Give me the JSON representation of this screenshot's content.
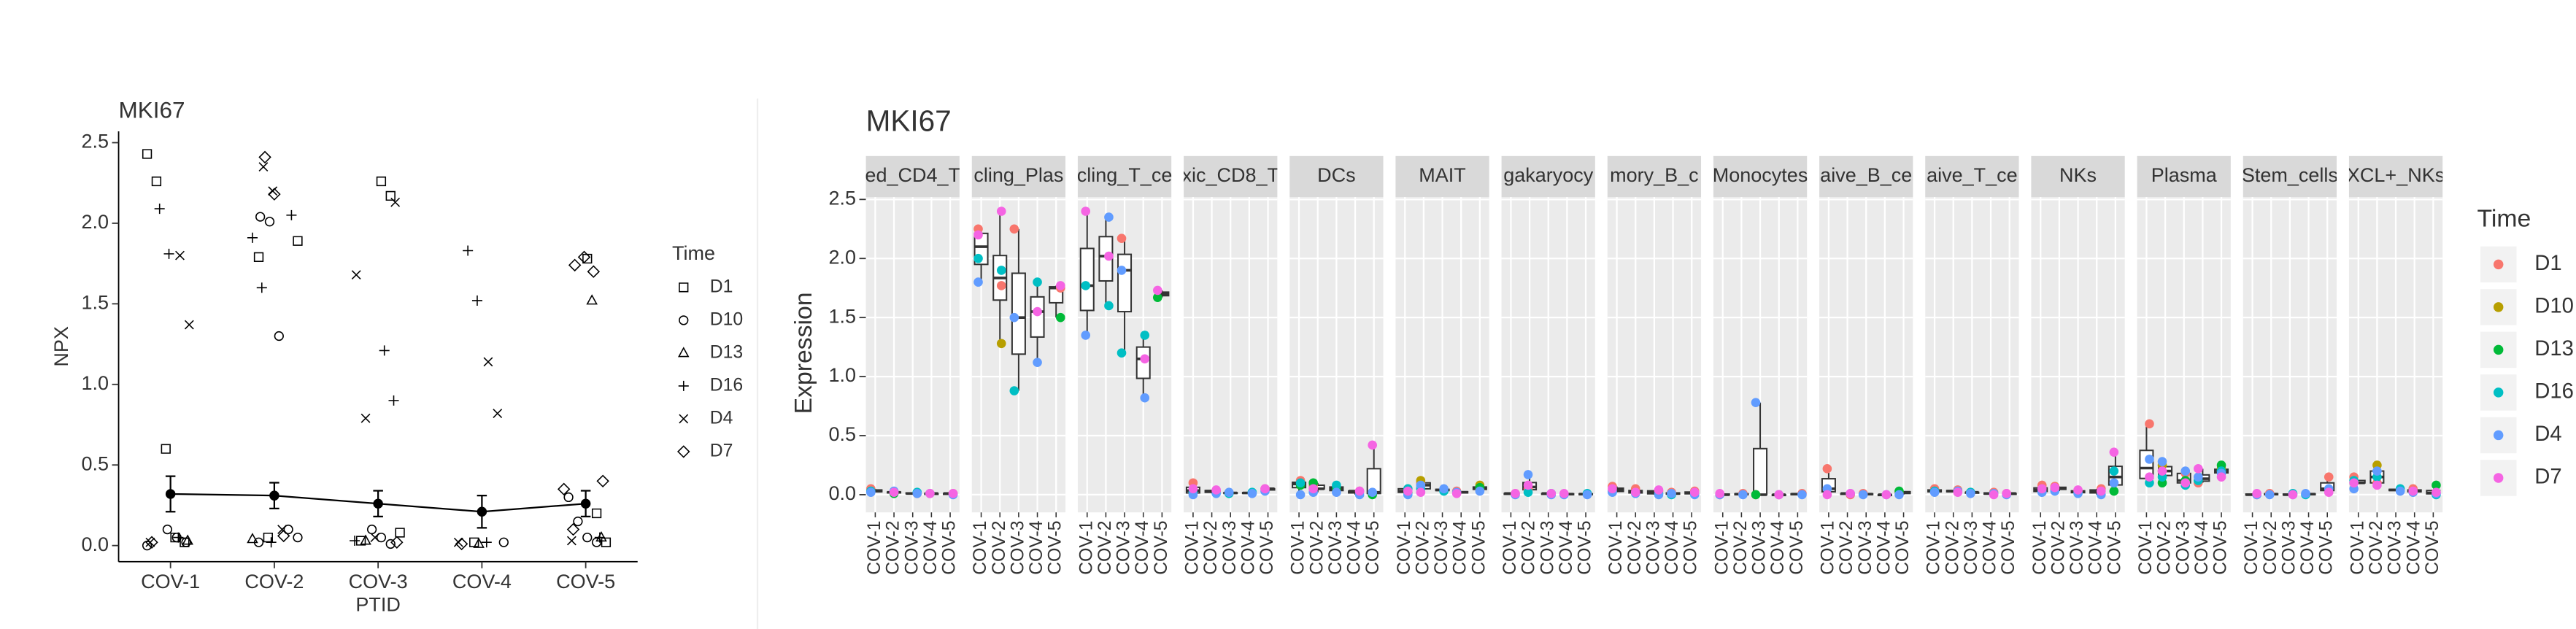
{
  "chart_data": [
    {
      "type": "scatter",
      "title": "MKI67",
      "xlabel": "PTID",
      "ylabel": "NPX",
      "legend_title": "Time",
      "categories": [
        "COV-1",
        "COV-2",
        "COV-3",
        "COV-4",
        "COV-5"
      ],
      "ylim": [
        -0.1,
        2.57
      ],
      "yticks": [
        {
          "value": 0,
          "label": "0.0"
        },
        0.5,
        {
          "value": 1,
          "label": "1.0"
        },
        1.5,
        {
          "value": 2,
          "label": "2.0"
        },
        2.5
      ],
      "series": [
        {
          "name": "D1",
          "shape": "square",
          "x": [
            "COV-1",
            "COV-1",
            "COV-1",
            "COV-1",
            "COV-1",
            "COV-2",
            "COV-2",
            "COV-2",
            "COV-3",
            "COV-3",
            "COV-3",
            "COV-3",
            "COV-4",
            "COV-5",
            "COV-5",
            "COV-5"
          ],
          "values": [
            2.43,
            2.26,
            0.6,
            0.05,
            0.02,
            1.89,
            1.79,
            0.05,
            2.26,
            2.17,
            0.08,
            0.03,
            0.02,
            1.78,
            0.2,
            0.02
          ]
        },
        {
          "name": "D10",
          "shape": "circle",
          "x": [
            "COV-1",
            "COV-1",
            "COV-1",
            "COV-1",
            "COV-2",
            "COV-2",
            "COV-2",
            "COV-2",
            "COV-2",
            "COV-2",
            "COV-3",
            "COV-3",
            "COV-3",
            "COV-4",
            "COV-5",
            "COV-5",
            "COV-5",
            "COV-5"
          ],
          "values": [
            0.1,
            0.05,
            0.02,
            0,
            2.04,
            2.01,
            1.3,
            0.1,
            0.05,
            0.02,
            0.1,
            0.05,
            0.01,
            0.02,
            0.3,
            0.15,
            0.05,
            0.02
          ]
        },
        {
          "name": "D13",
          "shape": "triangle",
          "x": [
            "COV-1",
            "COV-2",
            "COV-3",
            "COV-4",
            "COV-5",
            "COV-5"
          ],
          "values": [
            0.03,
            0.04,
            0.03,
            0.01,
            1.52,
            0.05
          ]
        },
        {
          "name": "D16",
          "shape": "plus",
          "x": [
            "COV-1",
            "COV-1",
            "COV-1",
            "COV-2",
            "COV-2",
            "COV-2",
            "COV-2",
            "COV-3",
            "COV-3",
            "COV-3",
            "COV-4",
            "COV-4",
            "COV-4",
            "COV-5"
          ],
          "values": [
            2.09,
            1.81,
            0.05,
            2.05,
            1.91,
            1.6,
            0.02,
            1.21,
            0.9,
            0.03,
            1.83,
            1.52,
            0.02,
            0.05
          ]
        },
        {
          "name": "D4",
          "shape": "cross",
          "x": [
            "COV-1",
            "COV-1",
            "COV-1",
            "COV-2",
            "COV-2",
            "COV-2",
            "COV-3",
            "COV-3",
            "COV-3",
            "COV-3",
            "COV-4",
            "COV-4",
            "COV-4",
            "COV-5"
          ],
          "values": [
            1.8,
            1.37,
            0.02,
            2.35,
            2.2,
            0.1,
            2.13,
            1.68,
            0.79,
            0.05,
            1.14,
            0.82,
            0.02,
            0.03
          ]
        },
        {
          "name": "D7",
          "shape": "diamond",
          "x": [
            "COV-1",
            "COV-2",
            "COV-2",
            "COV-2",
            "COV-3",
            "COV-4",
            "COV-5",
            "COV-5",
            "COV-5",
            "COV-5",
            "COV-5",
            "COV-5"
          ],
          "values": [
            0.02,
            2.41,
            2.18,
            0.06,
            0.02,
            0.01,
            1.74,
            1.79,
            1.7,
            0.4,
            0.35,
            0.1
          ]
        }
      ],
      "mean": {
        "values": [
          0.32,
          0.31,
          0.26,
          0.21,
          0.26
        ],
        "errors": [
          0.11,
          0.08,
          0.08,
          0.1,
          0.08
        ]
      }
    },
    {
      "type": "box",
      "title": "MKI67",
      "ylabel": "Expression",
      "legend_title": "Time",
      "categories": [
        "COV-1",
        "COV-2",
        "COV-3",
        "COV-4",
        "COV-5"
      ],
      "ylim": [
        -0.15,
        2.52
      ],
      "yticks": [
        {
          "value": 0,
          "label": "0.0"
        },
        0.5,
        {
          "value": 1,
          "label": "1.0"
        },
        1.5,
        {
          "value": 2,
          "label": "2.0"
        },
        2.5
      ],
      "series": [
        {
          "name": "D1",
          "color": "#F8766D"
        },
        {
          "name": "D10",
          "color": "#B79F00"
        },
        {
          "name": "D13",
          "color": "#00BA38"
        },
        {
          "name": "D16",
          "color": "#00BFC4"
        },
        {
          "name": "D4",
          "color": "#619CFF"
        },
        {
          "name": "D7",
          "color": "#F564E3"
        }
      ],
      "facets": [
        {
          "label": "ed_CD4_T",
          "values": [
            [
              0.05,
              0.02,
              0.01,
              0.01,
              0.01
            ],
            [
              null,
              null,
              null,
              null,
              null
            ],
            [
              null,
              0.01,
              null,
              null,
              null
            ],
            [
              0.03,
              null,
              0.02,
              null,
              null
            ],
            [
              0.02,
              0.03,
              0.01,
              0.01,
              0
            ],
            [
              null,
              0.02,
              null,
              0.01,
              0.01
            ]
          ]
        },
        {
          "label": "cling_Plas",
          "values": [
            [
              2.25,
              1.77,
              2.25,
              null,
              1.75
            ],
            [
              null,
              1.28,
              null,
              null,
              null
            ],
            [
              null,
              null,
              null,
              null,
              1.5
            ],
            [
              2.0,
              1.9,
              0.88,
              1.8,
              null
            ],
            [
              1.8,
              null,
              1.5,
              1.12,
              null
            ],
            [
              2.2,
              2.4,
              null,
              1.55,
              1.77
            ]
          ]
        },
        {
          "label": "cling_T_ce",
          "values": [
            [
              null,
              null,
              2.17,
              null,
              null
            ],
            [
              null,
              null,
              null,
              null,
              null
            ],
            [
              null,
              null,
              null,
              null,
              1.67
            ],
            [
              1.77,
              1.6,
              1.2,
              1.35,
              null
            ],
            [
              1.35,
              2.35,
              1.9,
              0.82,
              null
            ],
            [
              2.4,
              2.02,
              null,
              1.15,
              1.73
            ]
          ]
        },
        {
          "label": "xic_CD8_T",
          "values": [
            [
              0.1,
              0.03,
              null,
              null,
              0.05
            ],
            [
              null,
              null,
              null,
              null,
              null
            ],
            [
              null,
              null,
              null,
              null,
              null
            ],
            [
              0.02,
              null,
              0.01,
              0.02,
              null
            ],
            [
              0,
              0.01,
              0.02,
              0.01,
              0.03
            ],
            [
              0.05,
              0.04,
              null,
              null,
              0.05
            ]
          ]
        },
        {
          "label": "DCs",
          "values": [
            [
              0.12,
              0.08,
              null,
              0.03,
              null
            ],
            [
              null,
              0.05,
              null,
              null,
              null
            ],
            [
              0.08,
              0.1,
              0.05,
              null,
              0
            ],
            [
              0.1,
              null,
              0.08,
              null,
              null
            ],
            [
              0,
              0.02,
              0.02,
              0,
              0.02
            ],
            [
              null,
              0.05,
              null,
              0.03,
              0.42
            ]
          ]
        },
        {
          "label": "MAIT",
          "values": [
            [
              0.05,
              0.1,
              null,
              0.03,
              0.05
            ],
            [
              null,
              0.12,
              null,
              null,
              0.08
            ],
            [
              0.02,
              null,
              null,
              null,
              0.06
            ],
            [
              0.05,
              0.05,
              0.03,
              null,
              null
            ],
            [
              0,
              0.08,
              0.05,
              0.02,
              0.03
            ],
            [
              0.03,
              0.02,
              null,
              0.01,
              null
            ]
          ]
        },
        {
          "label": "gakaryocy",
          "values": [
            [
              0.01,
              0.05,
              null,
              null,
              null
            ],
            [
              null,
              null,
              null,
              null,
              null
            ],
            [
              null,
              null,
              null,
              null,
              null
            ],
            [
              null,
              0.02,
              0.01,
              null,
              0.01
            ],
            [
              0,
              0.17,
              0,
              0,
              0
            ],
            [
              0.01,
              0.08,
              0.01,
              0.01,
              null
            ]
          ]
        },
        {
          "label": "mory_B_c",
          "values": [
            [
              0.07,
              0.05,
              0.03,
              0.02,
              0.03
            ],
            [
              null,
              null,
              null,
              null,
              null
            ],
            [
              null,
              null,
              null,
              null,
              null
            ],
            [
              0.03,
              null,
              0.01,
              0,
              0.01
            ],
            [
              0.02,
              0.01,
              0,
              0.01,
              0
            ],
            [
              0.05,
              0.02,
              0.04,
              null,
              0.02
            ]
          ]
        },
        {
          "label": "Monocytes",
          "values": [
            [
              0,
              0.01,
              0,
              0,
              0.01
            ],
            [
              null,
              null,
              null,
              null,
              null
            ],
            [
              null,
              null,
              0,
              null,
              null
            ],
            [
              null,
              null,
              null,
              null,
              null
            ],
            [
              0,
              0,
              0.78,
              0,
              0
            ],
            [
              0.01,
              null,
              null,
              0,
              null
            ]
          ]
        },
        {
          "label": "aive_B_ce",
          "values": [
            [
              0.22,
              0,
              0.01,
              null,
              0.02
            ],
            [
              null,
              null,
              null,
              null,
              null
            ],
            [
              null,
              null,
              null,
              null,
              0.03
            ],
            [
              null,
              null,
              null,
              null,
              null
            ],
            [
              0.05,
              0.01,
              0,
              0,
              0
            ],
            [
              0,
              0.01,
              null,
              0,
              null
            ]
          ]
        },
        {
          "label": "aive_T_ce",
          "values": [
            [
              0.05,
              0.04,
              0.02,
              0.02,
              0.01
            ],
            [
              null,
              null,
              null,
              null,
              null
            ],
            [
              null,
              null,
              null,
              null,
              null
            ],
            [
              0.03,
              null,
              0.02,
              null,
              null
            ],
            [
              0.02,
              0.03,
              0.01,
              0.01,
              0
            ],
            [
              null,
              0.02,
              null,
              0,
              0.01
            ]
          ]
        },
        {
          "label": "NKs",
          "values": [
            [
              0.08,
              0.07,
              0.03,
              0.05,
              null
            ],
            [
              null,
              0.05,
              null,
              null,
              null
            ],
            [
              null,
              null,
              null,
              null,
              0.03
            ],
            [
              0.03,
              null,
              0.02,
              null,
              0.2
            ],
            [
              0.02,
              0.03,
              0.01,
              0,
              0.1
            ],
            [
              0.05,
              0.06,
              0.04,
              0.03,
              0.36
            ]
          ]
        },
        {
          "label": "Plasma",
          "values": [
            [
              0.6,
              0.2,
              0.18,
              0.1,
              0.2
            ],
            [
              null,
              0.25,
              null,
              null,
              0.22
            ],
            [
              null,
              0.1,
              0.12,
              null,
              0.25
            ],
            [
              0.1,
              0.15,
              0.08,
              0.12,
              0.2
            ],
            [
              0.3,
              0.28,
              0.2,
              0.15,
              0.18
            ],
            [
              0.15,
              0.2,
              0.1,
              0.22,
              0.15
            ]
          ]
        },
        {
          "label": "Stem_cells",
          "values": [
            [
              0,
              0.01,
              null,
              null,
              0.15
            ],
            [
              null,
              null,
              null,
              null,
              null
            ],
            [
              null,
              null,
              null,
              null,
              null
            ],
            [
              null,
              null,
              0.01,
              0,
              null
            ],
            [
              0,
              0,
              0,
              0.01,
              0.05
            ],
            [
              0.01,
              null,
              0,
              null,
              0.02
            ]
          ]
        },
        {
          "label": "XCL+_NKs",
          "values": [
            [
              0.15,
              0.1,
              null,
              0.05,
              null
            ],
            [
              null,
              0.25,
              null,
              null,
              null
            ],
            [
              0.1,
              null,
              null,
              null,
              0.08
            ],
            [
              0.12,
              0.15,
              0.05,
              null,
              0
            ],
            [
              0.05,
              0.2,
              0.03,
              0.02,
              0.01
            ],
            [
              0.1,
              0.08,
              null,
              0.03,
              0.02
            ]
          ]
        }
      ]
    }
  ]
}
